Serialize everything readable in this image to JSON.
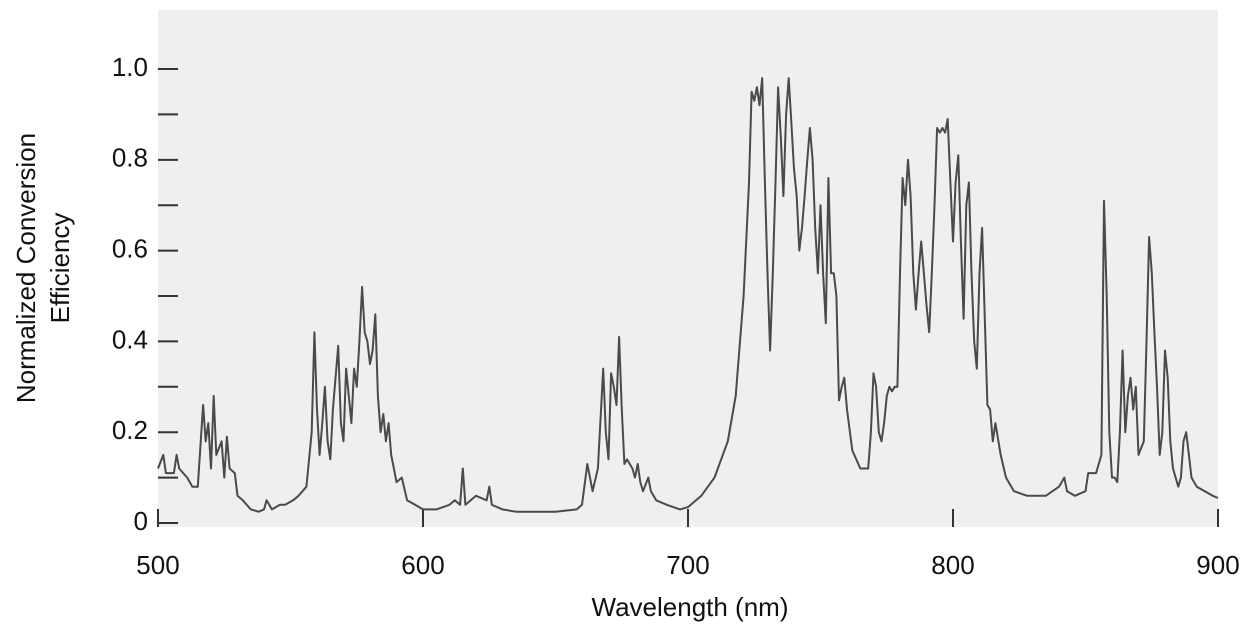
{
  "chart_data": {
    "type": "line",
    "xlabel": "Wavelength (nm)",
    "ylabel": [
      "Normalized Conversion",
      "Efficiency"
    ],
    "color": "#4a4a4a",
    "background": "#efefef",
    "xlim": [
      500,
      900
    ],
    "xticks": [
      500,
      600,
      700,
      800,
      900
    ],
    "ylim": [
      0,
      1.13
    ],
    "yticks": [
      0,
      0.2,
      0.4,
      0.6,
      0.8,
      {
        "value": 1,
        "label": "1.0"
      }
    ],
    "yminor_ticks": [
      0.1,
      0.3,
      0.5,
      0.7,
      0.9
    ],
    "grid": false,
    "x": [
      500,
      502,
      503,
      506,
      507,
      508,
      511,
      513,
      515,
      517,
      518,
      519,
      520,
      521,
      522,
      524,
      525,
      526,
      527,
      529,
      530,
      532,
      535,
      538,
      540,
      541,
      543,
      546,
      548,
      551,
      553,
      556,
      558,
      559,
      560,
      561,
      562,
      563,
      564,
      565,
      566,
      568,
      569,
      570,
      571,
      572,
      573,
      574,
      575,
      576,
      577,
      578,
      579,
      580,
      581,
      582,
      583,
      584,
      585,
      586,
      587,
      588,
      589,
      590,
      592,
      594,
      597,
      600,
      605,
      610,
      612,
      614,
      615,
      616,
      620,
      624,
      625,
      626,
      630,
      635,
      640,
      650,
      658,
      660,
      662,
      663,
      664,
      666,
      668,
      669,
      670,
      671,
      672,
      673,
      674,
      675,
      676,
      677,
      679,
      680,
      681,
      682,
      683,
      685,
      686,
      688,
      692,
      697,
      700,
      705,
      710,
      715,
      718,
      721,
      723,
      724,
      725,
      726,
      727,
      728,
      729,
      730,
      731,
      732,
      733,
      734,
      735,
      736,
      737,
      738,
      739,
      740,
      741,
      742,
      743,
      744,
      745,
      746,
      747,
      748,
      749,
      750,
      751,
      752,
      753,
      754,
      755,
      756,
      757,
      758,
      759,
      760,
      762,
      765,
      768,
      769,
      770,
      771,
      772,
      773,
      774,
      775,
      776,
      777,
      778,
      779,
      780,
      781,
      782,
      783,
      784,
      785,
      786,
      787,
      788,
      789,
      790,
      791,
      792,
      793,
      794,
      795,
      796,
      797,
      798,
      799,
      800,
      801,
      802,
      803,
      804,
      805,
      806,
      807,
      808,
      809,
      810,
      811,
      812,
      813,
      814,
      815,
      816,
      818,
      820,
      823,
      828,
      835,
      840,
      842,
      843,
      846,
      850,
      851,
      854,
      856,
      857,
      858,
      859,
      860,
      861,
      862,
      863,
      864,
      865,
      866,
      867,
      868,
      869,
      870,
      872,
      873,
      874,
      875,
      876,
      877,
      878,
      879,
      880,
      881,
      882,
      883,
      885,
      886,
      887,
      888,
      889,
      890,
      892,
      895,
      898,
      900
    ],
    "values": [
      0.12,
      0.15,
      0.11,
      0.11,
      0.15,
      0.12,
      0.1,
      0.08,
      0.08,
      0.26,
      0.18,
      0.22,
      0.12,
      0.28,
      0.15,
      0.18,
      0.1,
      0.19,
      0.12,
      0.11,
      0.06,
      0.05,
      0.03,
      0.025,
      0.03,
      0.05,
      0.03,
      0.04,
      0.04,
      0.05,
      0.06,
      0.08,
      0.2,
      0.42,
      0.25,
      0.15,
      0.22,
      0.3,
      0.18,
      0.14,
      0.25,
      0.39,
      0.22,
      0.18,
      0.34,
      0.28,
      0.22,
      0.34,
      0.3,
      0.4,
      0.52,
      0.42,
      0.4,
      0.35,
      0.38,
      0.46,
      0.28,
      0.2,
      0.24,
      0.18,
      0.22,
      0.15,
      0.12,
      0.09,
      0.1,
      0.05,
      0.04,
      0.03,
      0.03,
      0.04,
      0.05,
      0.04,
      0.12,
      0.04,
      0.06,
      0.05,
      0.08,
      0.04,
      0.03,
      0.025,
      0.025,
      0.025,
      0.03,
      0.04,
      0.13,
      0.1,
      0.07,
      0.12,
      0.34,
      0.2,
      0.14,
      0.33,
      0.3,
      0.26,
      0.41,
      0.25,
      0.13,
      0.14,
      0.12,
      0.1,
      0.13,
      0.09,
      0.07,
      0.1,
      0.07,
      0.05,
      0.04,
      0.03,
      0.035,
      0.06,
      0.1,
      0.18,
      0.28,
      0.5,
      0.75,
      0.95,
      0.93,
      0.96,
      0.92,
      0.98,
      0.75,
      0.55,
      0.38,
      0.55,
      0.75,
      0.96,
      0.85,
      0.72,
      0.9,
      0.98,
      0.88,
      0.78,
      0.72,
      0.6,
      0.65,
      0.72,
      0.8,
      0.87,
      0.8,
      0.65,
      0.55,
      0.7,
      0.55,
      0.44,
      0.76,
      0.55,
      0.55,
      0.5,
      0.27,
      0.3,
      0.32,
      0.25,
      0.16,
      0.12,
      0.12,
      0.2,
      0.33,
      0.3,
      0.2,
      0.18,
      0.22,
      0.28,
      0.3,
      0.29,
      0.3,
      0.3,
      0.55,
      0.76,
      0.7,
      0.8,
      0.72,
      0.55,
      0.47,
      0.55,
      0.62,
      0.55,
      0.48,
      0.42,
      0.55,
      0.7,
      0.87,
      0.86,
      0.87,
      0.86,
      0.89,
      0.75,
      0.62,
      0.75,
      0.81,
      0.62,
      0.45,
      0.7,
      0.75,
      0.55,
      0.4,
      0.34,
      0.55,
      0.65,
      0.45,
      0.26,
      0.25,
      0.18,
      0.22,
      0.15,
      0.1,
      0.07,
      0.06,
      0.06,
      0.08,
      0.1,
      0.07,
      0.06,
      0.07,
      0.11,
      0.11,
      0.15,
      0.71,
      0.5,
      0.2,
      0.1,
      0.1,
      0.09,
      0.2,
      0.38,
      0.2,
      0.28,
      0.32,
      0.25,
      0.3,
      0.15,
      0.18,
      0.4,
      0.63,
      0.55,
      0.42,
      0.3,
      0.15,
      0.2,
      0.38,
      0.32,
      0.18,
      0.12,
      0.08,
      0.1,
      0.18,
      0.2,
      0.15,
      0.1,
      0.08,
      0.07,
      0.06,
      0.055
    ]
  }
}
